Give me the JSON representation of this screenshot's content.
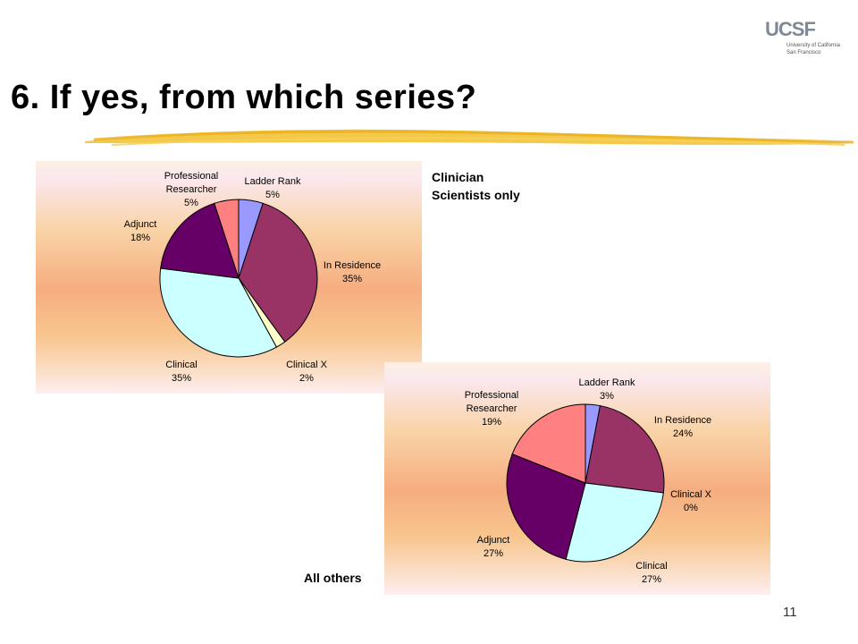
{
  "slide": {
    "title": "6. If yes, from which series?",
    "page_number": "11"
  },
  "logo": {
    "mark": "UCSF",
    "line1": "University of California",
    "line2": "San Francisco"
  },
  "captions": {
    "chart1": [
      "Clinician",
      "Scientists only"
    ],
    "chart2": "All others"
  },
  "colors": {
    "ladder_rank": "#9999ff",
    "in_residence": "#993366",
    "clinical_x": "#ffffcc",
    "clinical": "#ccffff",
    "adjunct": "#660066",
    "professional_researcher": "#ff8080",
    "title_underline": "#f2c02a"
  },
  "chart_data": [
    {
      "type": "pie",
      "caption": "Clinician Scientists only",
      "slices": [
        {
          "name": "Ladder Rank",
          "value": 5,
          "label": "5%",
          "color": "#9999ff"
        },
        {
          "name": "In Residence",
          "value": 35,
          "label": "35%",
          "color": "#993366"
        },
        {
          "name": "Clinical X",
          "value": 2,
          "label": "2%",
          "color": "#ffffcc"
        },
        {
          "name": "Clinical",
          "value": 35,
          "label": "35%",
          "color": "#ccffff"
        },
        {
          "name": "Adjunct",
          "value": 18,
          "label": "18%",
          "color": "#660066"
        },
        {
          "name": "Professional Researcher",
          "value": 5,
          "label": "5%",
          "color": "#ff8080"
        }
      ]
    },
    {
      "type": "pie",
      "caption": "All others",
      "slices": [
        {
          "name": "Ladder Rank",
          "value": 3,
          "label": "3%",
          "color": "#9999ff"
        },
        {
          "name": "In Residence",
          "value": 24,
          "label": "24%",
          "color": "#993366"
        },
        {
          "name": "Clinical X",
          "value": 0,
          "label": "0%",
          "color": "#ffffcc"
        },
        {
          "name": "Clinical",
          "value": 27,
          "label": "27%",
          "color": "#ccffff"
        },
        {
          "name": "Adjunct",
          "value": 27,
          "label": "27%",
          "color": "#660066"
        },
        {
          "name": "Professional Researcher",
          "value": 19,
          "label": "19%",
          "color": "#ff8080"
        }
      ]
    }
  ]
}
